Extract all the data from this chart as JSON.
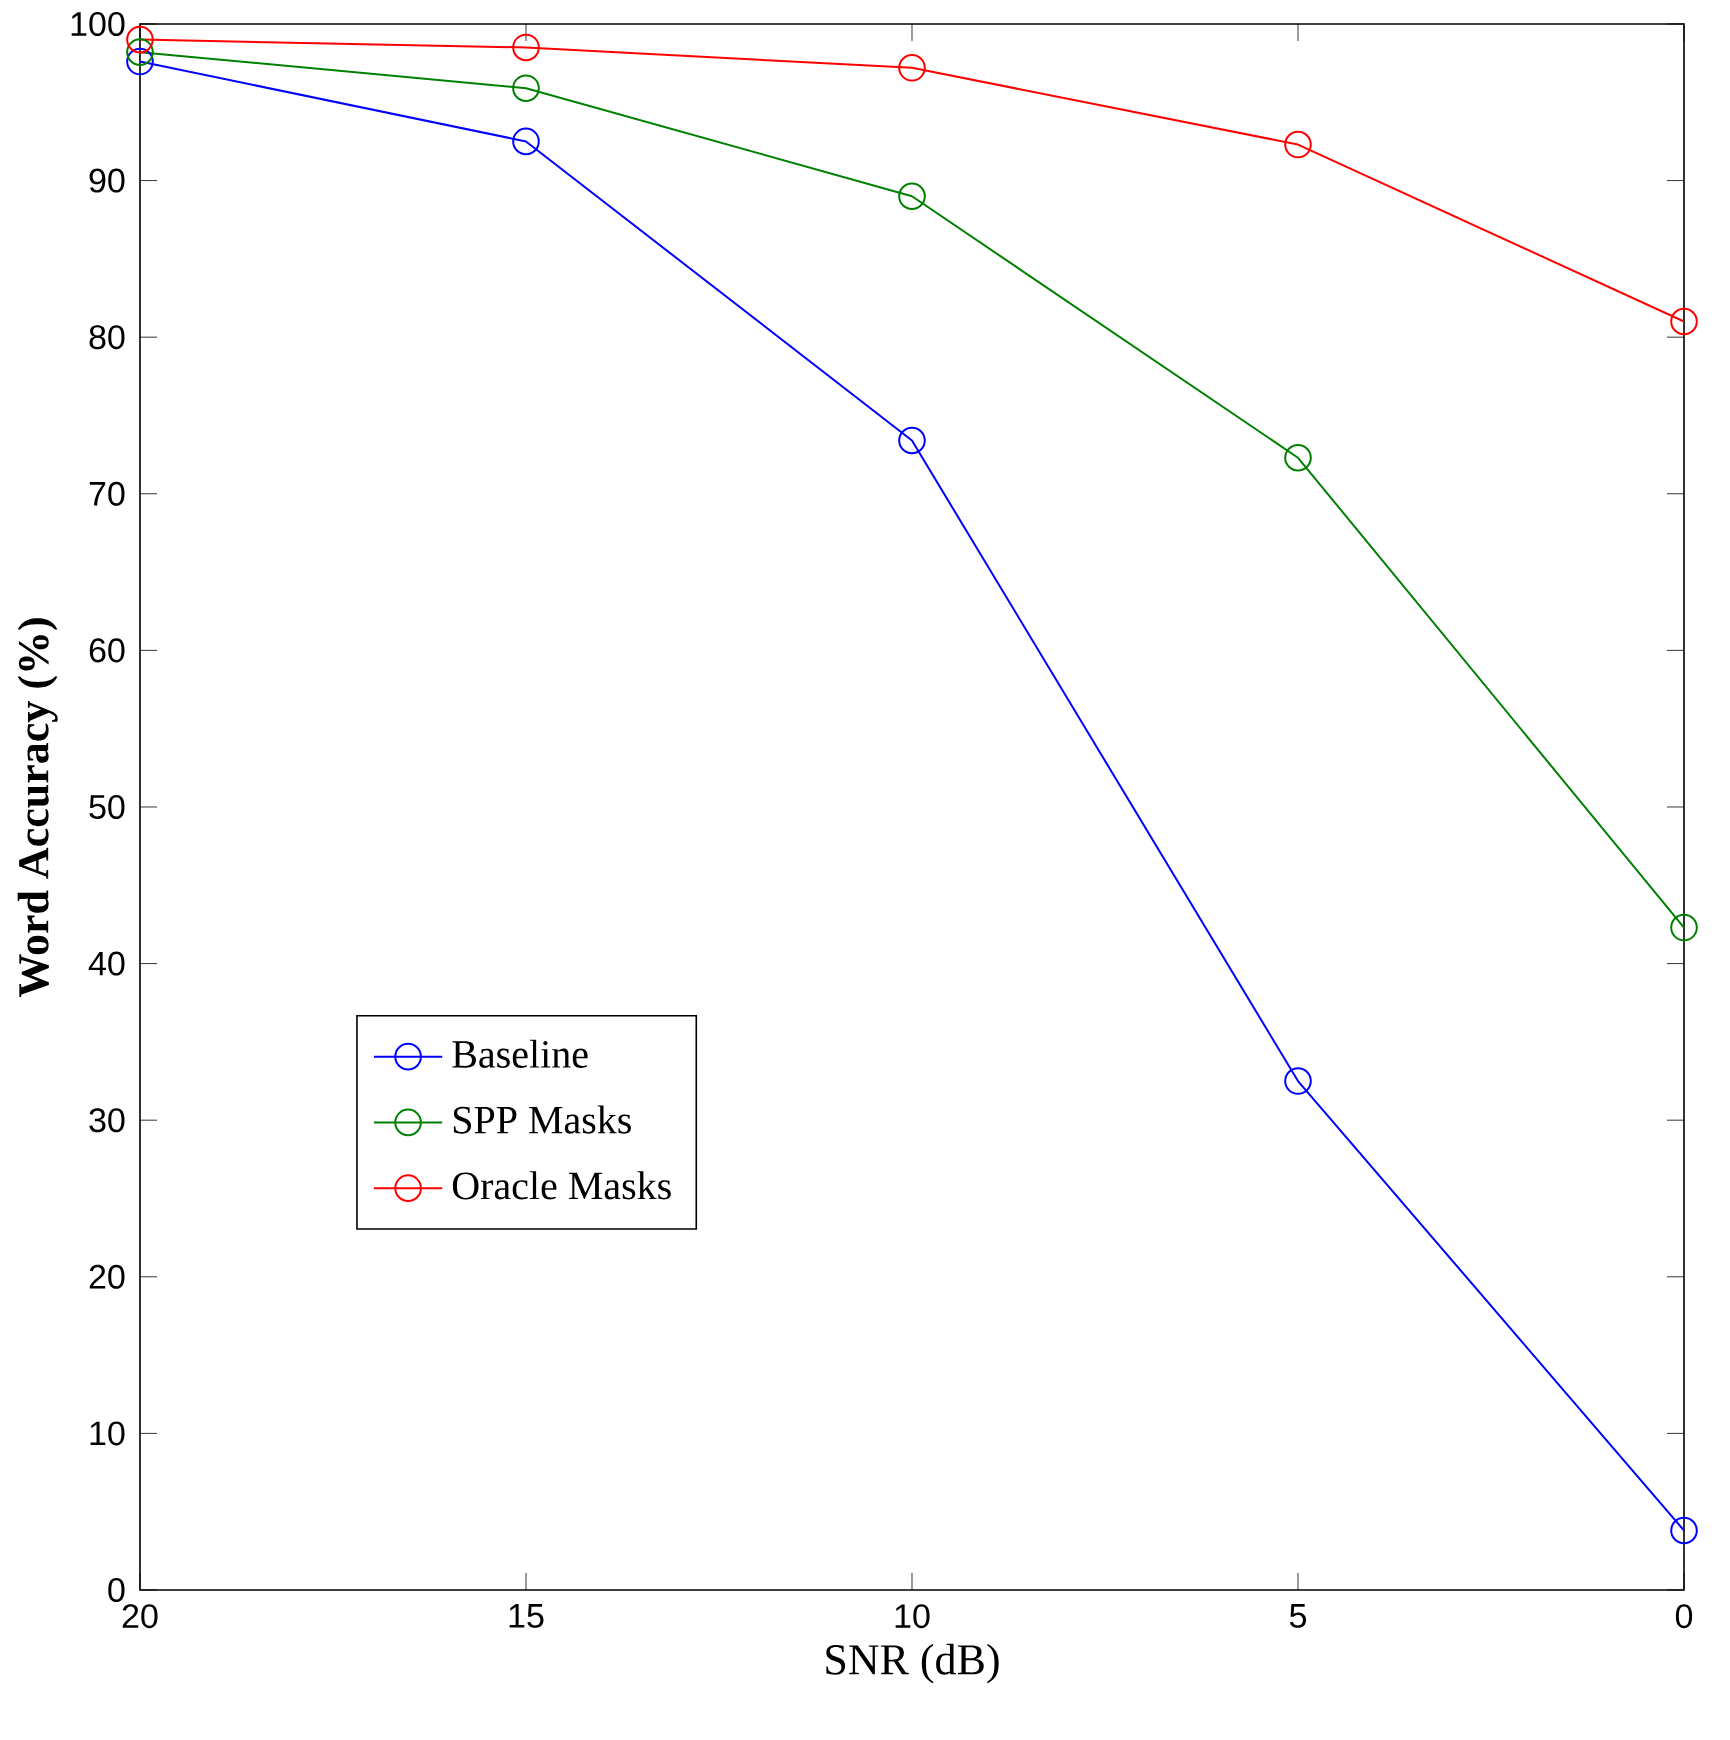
{
  "chart_data": {
    "type": "line",
    "xlabel": "SNR (dB)",
    "ylabel": "Word Accuracy (%)",
    "x": [
      20,
      15,
      10,
      5,
      0
    ],
    "series": [
      {
        "name": "Baseline",
        "color": "#0000ff",
        "values": [
          97.6,
          92.5,
          73.4,
          32.5,
          3.8
        ]
      },
      {
        "name": "SPP Masks",
        "color": "#008000",
        "values": [
          98.2,
          95.9,
          89.0,
          72.3,
          42.3
        ]
      },
      {
        "name": "Oracle Masks",
        "color": "#ff0000",
        "values": [
          99.0,
          98.5,
          97.2,
          92.3,
          81.0
        ]
      }
    ],
    "xlim": [
      20,
      0
    ],
    "ylim": [
      0,
      100
    ],
    "xticks": [
      20,
      15,
      10,
      5,
      0
    ],
    "yticks": [
      0,
      10,
      20,
      30,
      40,
      50,
      60,
      70,
      80,
      90,
      100
    ],
    "legend": "bottom left",
    "marker": "circle",
    "line_style": "solid",
    "grid": false
  }
}
